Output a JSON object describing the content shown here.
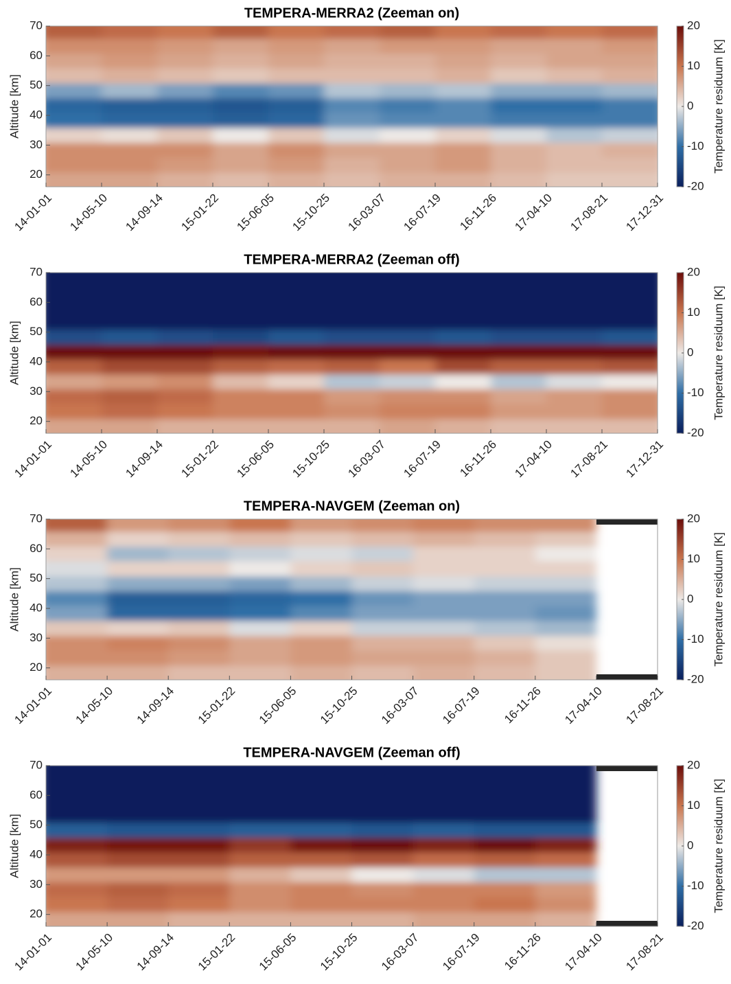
{
  "chart_data": [
    {
      "type": "heatmap",
      "title": "TEMPERA-MERRA2 (Zeeman on)",
      "ylabel": "Altitude [km]",
      "clabel": "Temperature residuum [K]",
      "categories": [
        "14-01-01",
        "14-05-10",
        "14-09-14",
        "15-01-22",
        "15-06-05",
        "15-10-25",
        "16-03-07",
        "16-07-19",
        "16-11-26",
        "17-04-10",
        "17-08-21",
        "17-12-31"
      ],
      "y": [
        18.5,
        23.5,
        28.5,
        33.5,
        38.5,
        43.5,
        48.5,
        53.5,
        58.5,
        63.5,
        68.5
      ],
      "z": [
        [
          6,
          6,
          5,
          4,
          5,
          4,
          5,
          5,
          4,
          3,
          3
        ],
        [
          8,
          8,
          7,
          6,
          7,
          5,
          6,
          7,
          5,
          4,
          4
        ],
        [
          8,
          8,
          8,
          6,
          8,
          6,
          6,
          7,
          5,
          4,
          5
        ],
        [
          2,
          1,
          3,
          0,
          3,
          -1,
          0,
          2,
          -1,
          -3,
          -2
        ],
        [
          -10,
          -11,
          -11,
          -12,
          -11,
          -7,
          -8,
          -8,
          -9,
          -9,
          -9
        ],
        [
          -11,
          -12,
          -12,
          -13,
          -12,
          -8,
          -9,
          -8,
          -10,
          -10,
          -9
        ],
        [
          -6,
          -4,
          -6,
          -8,
          -7,
          -3,
          -4,
          -3,
          -5,
          -5,
          -4
        ],
        [
          4,
          5,
          4,
          3,
          4,
          4,
          4,
          5,
          3,
          4,
          5
        ],
        [
          6,
          7,
          6,
          5,
          6,
          5,
          5,
          6,
          5,
          6,
          6
        ],
        [
          8,
          8,
          7,
          6,
          7,
          6,
          7,
          7,
          6,
          6,
          7
        ],
        [
          12,
          11,
          10,
          12,
          10,
          11,
          12,
          10,
          11,
          10,
          11
        ]
      ],
      "ylim": [
        16,
        70
      ],
      "yticks": [
        20,
        30,
        40,
        50,
        60,
        70
      ],
      "clim": [
        -20,
        20
      ],
      "cticks": [
        -20,
        -10,
        0,
        10,
        20
      ],
      "colormap": [
        "#0a1f5c",
        "#2f6ea6",
        "#ede9e6",
        "#c9764f",
        "#6b0d0a"
      ]
    },
    {
      "type": "heatmap",
      "title": "TEMPERA-MERRA2 (Zeeman off)",
      "ylabel": "Altitude [km]",
      "clabel": "Temperature residuum [K]",
      "categories": [
        "14-01-01",
        "14-05-10",
        "14-09-14",
        "15-01-22",
        "15-06-05",
        "15-10-25",
        "16-03-07",
        "16-07-19",
        "16-11-26",
        "17-04-10",
        "17-08-21",
        "17-12-31"
      ],
      "y": [
        18.5,
        23.5,
        28.5,
        33.5,
        38.5,
        43.5,
        48.5,
        53.5,
        58.5,
        63.5,
        68.5
      ],
      "z": [
        [
          6,
          6,
          5,
          5,
          5,
          5,
          6,
          5,
          4,
          4,
          4
        ],
        [
          10,
          11,
          10,
          9,
          9,
          8,
          9,
          9,
          7,
          7,
          8
        ],
        [
          11,
          12,
          11,
          9,
          9,
          7,
          8,
          8,
          6,
          7,
          8
        ],
        [
          6,
          7,
          8,
          4,
          2,
          -3,
          -2,
          0,
          -3,
          -1,
          0
        ],
        [
          12,
          14,
          14,
          12,
          11,
          12,
          10,
          14,
          12,
          12,
          13
        ],
        [
          20,
          20,
          20,
          19,
          20,
          20,
          20,
          20,
          20,
          20,
          20
        ],
        [
          -14,
          -13,
          -14,
          -15,
          -13,
          -14,
          -14,
          -13,
          -14,
          -14,
          -13
        ],
        [
          -20,
          -20,
          -20,
          -20,
          -20,
          -20,
          -20,
          -20,
          -20,
          -20,
          -20
        ],
        [
          -20,
          -20,
          -20,
          -20,
          -20,
          -20,
          -20,
          -20,
          -20,
          -20,
          -20
        ],
        [
          -20,
          -20,
          -20,
          -20,
          -20,
          -20,
          -20,
          -20,
          -20,
          -20,
          -20
        ],
        [
          -20,
          -20,
          -20,
          -20,
          -20,
          -20,
          -20,
          -20,
          -20,
          -20,
          -20
        ]
      ],
      "ylim": [
        16,
        70
      ],
      "yticks": [
        20,
        30,
        40,
        50,
        60,
        70
      ],
      "clim": [
        -20,
        20
      ],
      "cticks": [
        -20,
        -10,
        0,
        10,
        20
      ],
      "colormap": [
        "#0a1f5c",
        "#2f6ea6",
        "#ede9e6",
        "#c9764f",
        "#6b0d0a"
      ]
    },
    {
      "type": "heatmap",
      "title": "TEMPERA-NAVGEM (Zeeman on)",
      "ylabel": "Altitude [km]",
      "clabel": "Temperature residuum [K]",
      "categories": [
        "14-01-01",
        "14-05-10",
        "14-09-14",
        "15-01-22",
        "15-06-05",
        "15-10-25",
        "16-03-07",
        "16-07-19",
        "16-11-26",
        "17-04-10",
        "17-08-21"
      ],
      "y": [
        18.5,
        23.5,
        28.5,
        33.5,
        38.5,
        43.5,
        48.5,
        53.5,
        58.5,
        63.5,
        68.5
      ],
      "z": [
        [
          5,
          5,
          4,
          4,
          5,
          4,
          5,
          4,
          3,
          null
        ],
        [
          8,
          8,
          7,
          6,
          7,
          6,
          6,
          5,
          3,
          null
        ],
        [
          8,
          9,
          8,
          6,
          7,
          5,
          5,
          3,
          1,
          null
        ],
        [
          3,
          2,
          3,
          -1,
          2,
          -2,
          -2,
          -3,
          -4,
          null
        ],
        [
          -6,
          -11,
          -11,
          -10,
          -8,
          -6,
          -6,
          -6,
          -7,
          null
        ],
        [
          -8,
          -12,
          -12,
          -11,
          -10,
          -7,
          -6,
          -6,
          -6,
          null
        ],
        [
          -3,
          -5,
          -5,
          -6,
          -4,
          -2,
          -1,
          -2,
          -2,
          null
        ],
        [
          -1,
          2,
          2,
          0,
          2,
          3,
          2,
          2,
          2,
          null
        ],
        [
          2,
          -4,
          -3,
          -2,
          -1,
          -2,
          2,
          2,
          0,
          null
        ],
        [
          5,
          2,
          3,
          4,
          3,
          4,
          5,
          4,
          3,
          null
        ],
        [
          12,
          7,
          8,
          10,
          7,
          8,
          9,
          8,
          8,
          null
        ]
      ],
      "ylim": [
        16,
        70
      ],
      "yticks": [
        20,
        30,
        40,
        50,
        60,
        70
      ],
      "clim": [
        -20,
        20
      ],
      "cticks": [
        -20,
        -10,
        0,
        10,
        20
      ],
      "colormap": [
        "#0a1f5c",
        "#2f6ea6",
        "#ede9e6",
        "#c9764f",
        "#6b0d0a"
      ]
    },
    {
      "type": "heatmap",
      "title": "TEMPERA-NAVGEM (Zeeman off)",
      "ylabel": "Altitude [km]",
      "clabel": "Temperature residuum [K]",
      "categories": [
        "14-01-01",
        "14-05-10",
        "14-09-14",
        "15-01-22",
        "15-06-05",
        "15-10-25",
        "16-03-07",
        "16-07-19",
        "16-11-26",
        "17-04-10",
        "17-08-21"
      ],
      "y": [
        18.5,
        23.5,
        28.5,
        33.5,
        38.5,
        43.5,
        48.5,
        53.5,
        58.5,
        63.5,
        68.5
      ],
      "z": [
        [
          6,
          6,
          5,
          5,
          5,
          5,
          6,
          6,
          5,
          null
        ],
        [
          10,
          11,
          10,
          8,
          9,
          9,
          9,
          10,
          8,
          null
        ],
        [
          11,
          12,
          11,
          8,
          9,
          8,
          9,
          9,
          7,
          null
        ],
        [
          7,
          7,
          7,
          5,
          3,
          0,
          -1,
          -3,
          -3,
          null
        ],
        [
          13,
          14,
          14,
          12,
          12,
          13,
          11,
          12,
          11,
          null
        ],
        [
          18,
          19,
          19,
          16,
          19,
          20,
          18,
          20,
          18,
          null
        ],
        [
          -12,
          -13,
          -13,
          -12,
          -12,
          -13,
          -12,
          -13,
          -13,
          null
        ],
        [
          -20,
          -20,
          -20,
          -20,
          -20,
          -20,
          -20,
          -20,
          -20,
          null
        ],
        [
          -20,
          -20,
          -20,
          -20,
          -20,
          -20,
          -20,
          -20,
          -20,
          null
        ],
        [
          -20,
          -20,
          -20,
          -20,
          -20,
          -20,
          -20,
          -20,
          -20,
          null
        ],
        [
          -20,
          -20,
          -20,
          -20,
          -20,
          -20,
          -20,
          -20,
          -20,
          null
        ]
      ],
      "ylim": [
        16,
        70
      ],
      "yticks": [
        20,
        30,
        40,
        50,
        60,
        70
      ],
      "clim": [
        -20,
        20
      ],
      "cticks": [
        -20,
        -10,
        0,
        10,
        20
      ],
      "colormap": [
        "#0a1f5c",
        "#2f6ea6",
        "#ede9e6",
        "#c9764f",
        "#6b0d0a"
      ]
    }
  ]
}
